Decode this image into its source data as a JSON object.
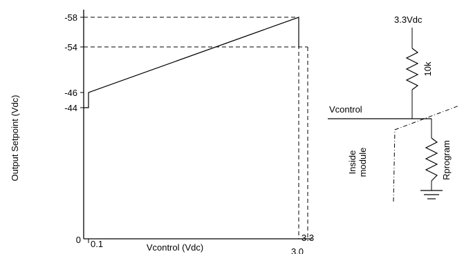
{
  "chart_data": {
    "type": "line",
    "xlabel": "Vcontrol (Vdc)",
    "ylabel": "Output Setpoint (Vdc)",
    "y_tick_labels": [
      "-58",
      "-54",
      "-46",
      "-44"
    ],
    "x_tick_labels": [
      "0",
      "0.1",
      "3.0",
      "3.3"
    ],
    "series": [
      {
        "x": [
          0,
          0.1,
          0.1,
          3.0,
          3.0
        ],
        "y": [
          -44,
          -44,
          -46,
          -58,
          -54
        ]
      }
    ],
    "dashed_guides": [
      {
        "from": [
          0,
          -58
        ],
        "to": [
          3.0,
          -58
        ]
      },
      {
        "from": [
          0,
          -54
        ],
        "to": [
          3.3,
          -54
        ]
      },
      {
        "from": [
          3.0,
          -58
        ],
        "to": [
          3.0,
          0
        ]
      },
      {
        "from": [
          3.3,
          -54
        ],
        "to": [
          3.3,
          0
        ]
      }
    ]
  },
  "schematic": {
    "supply_label": "3.3Vdc",
    "resistor_top_label": "10k",
    "node_label": "Vcontrol",
    "module_label_line1": "Inside",
    "module_label_line2": "module",
    "resistor_bottom_label": "Rprogram"
  }
}
